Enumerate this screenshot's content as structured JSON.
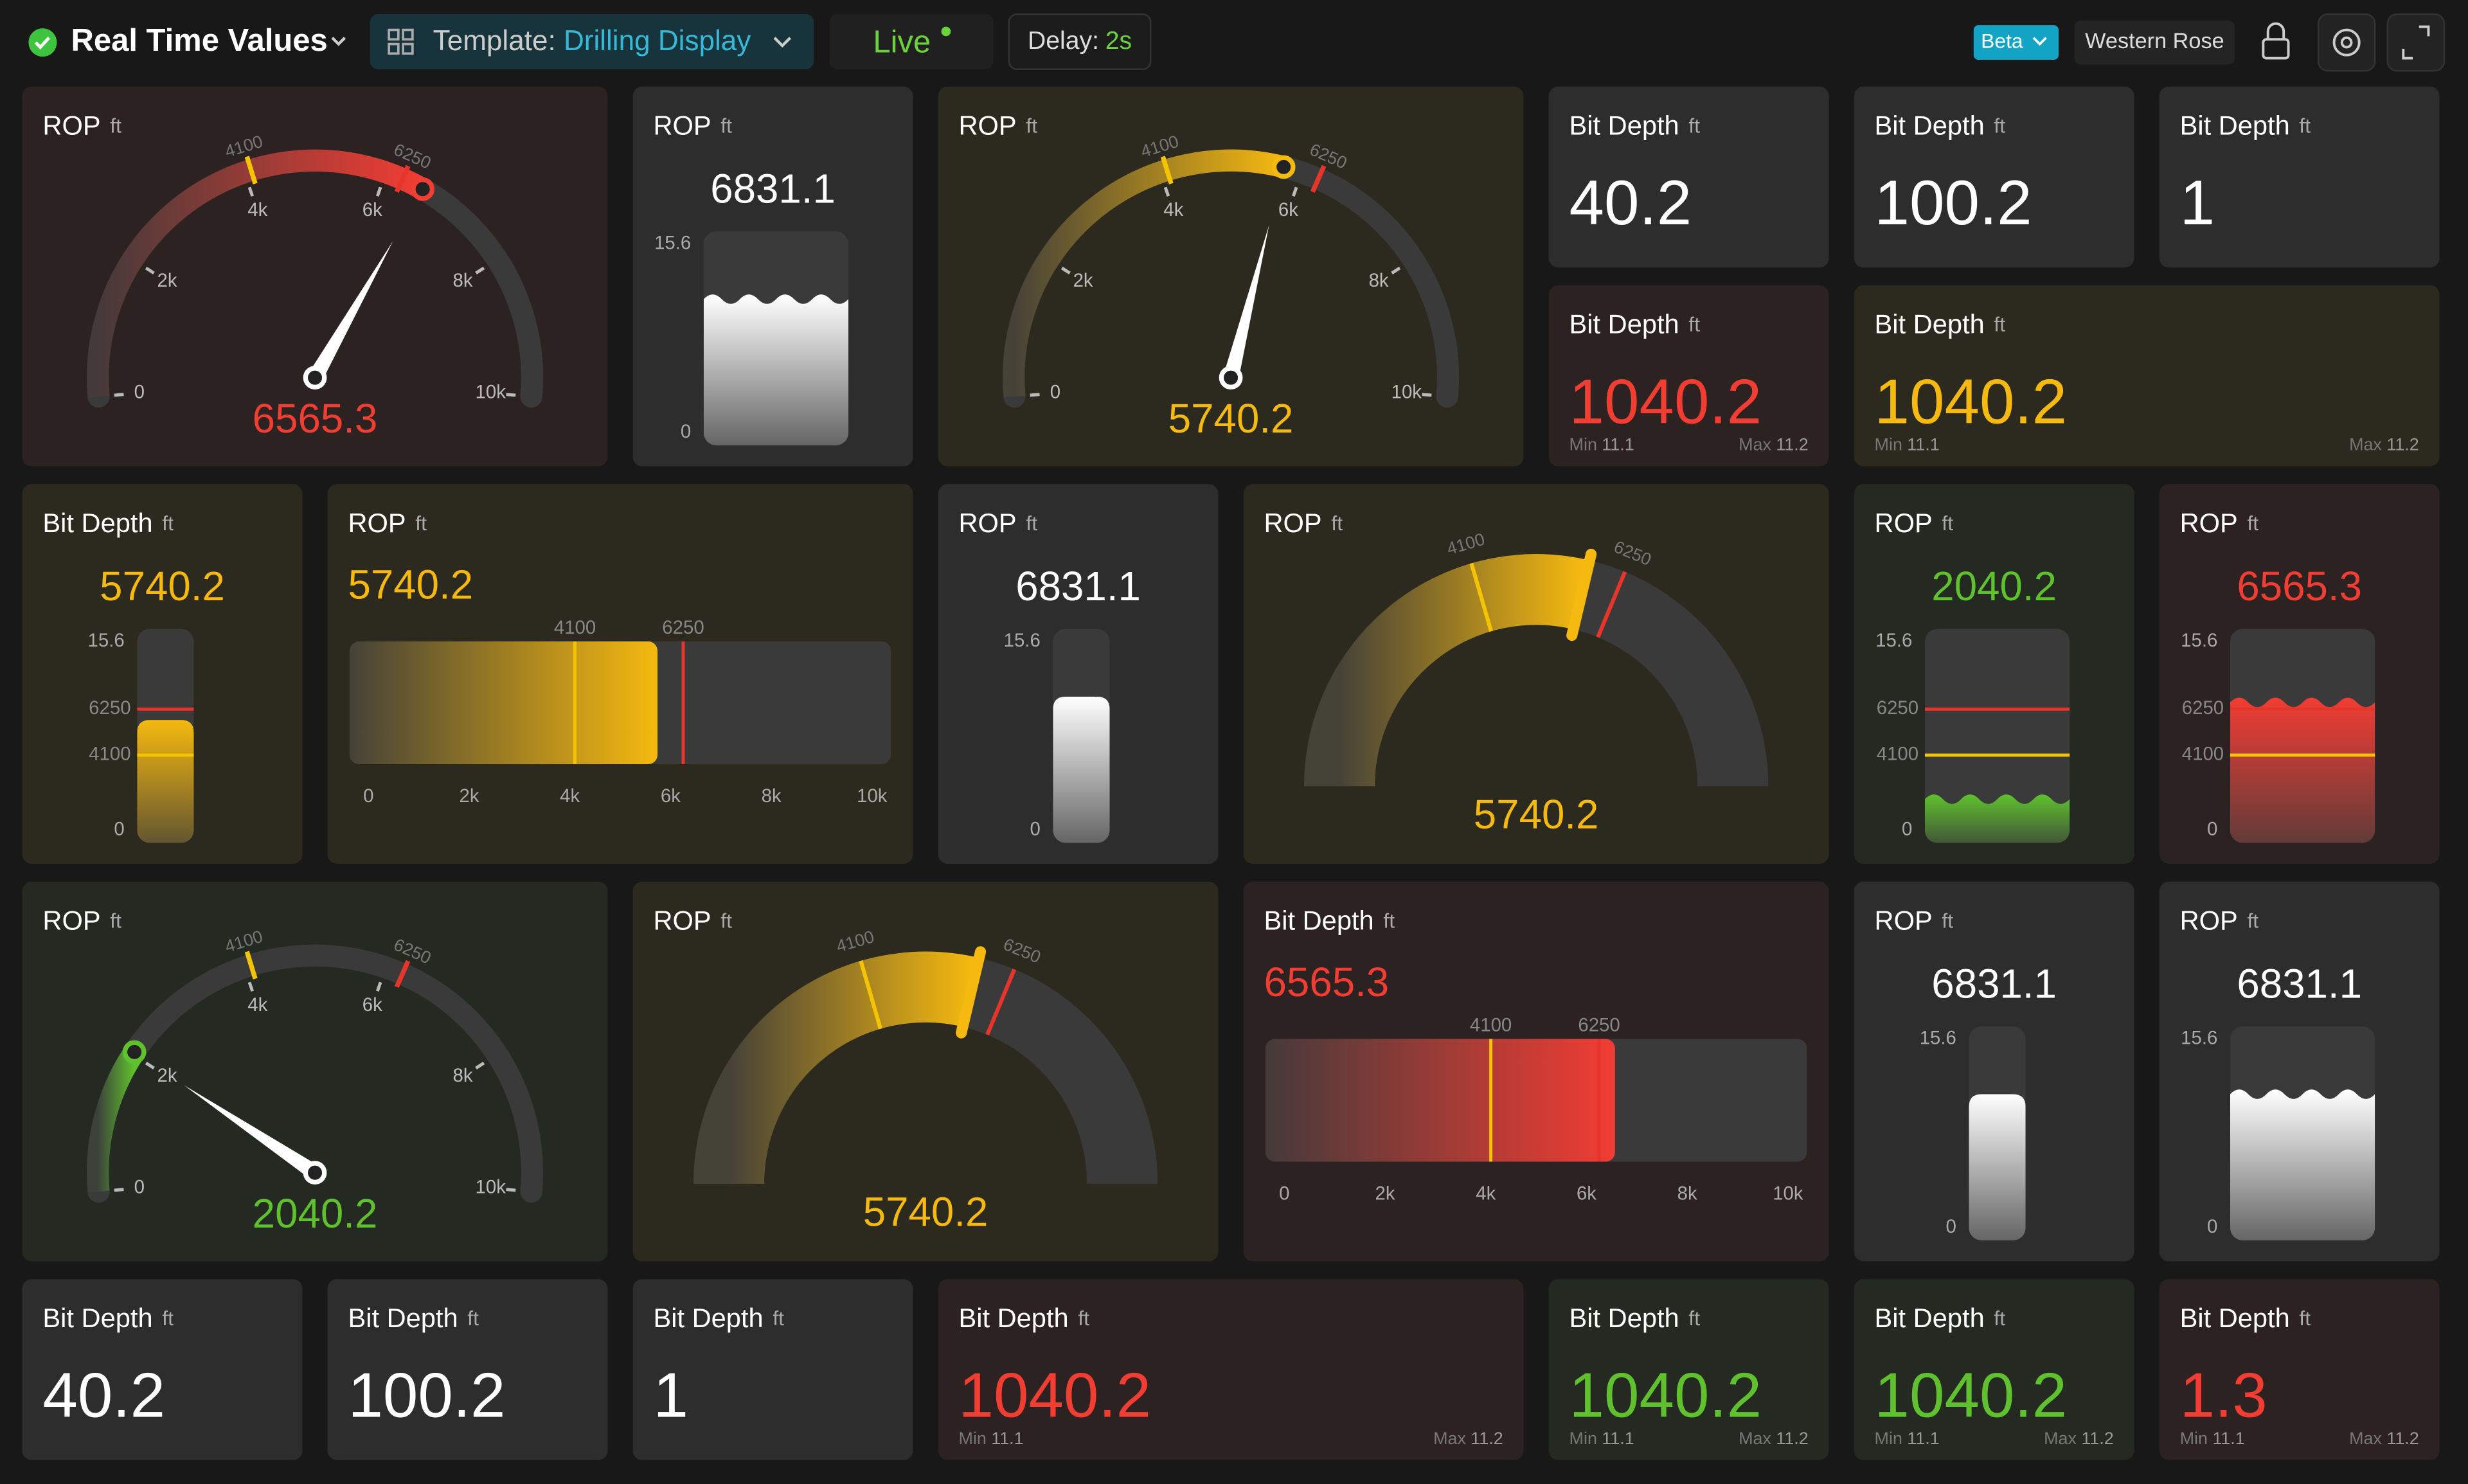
{
  "header": {
    "title": "Real Time Values",
    "template_label": "Template:",
    "template_name": "Drilling Display",
    "live": "Live",
    "delay_label": "Delay:",
    "delay": "2s",
    "beta": "Beta",
    "user": "Western Rose"
  },
  "scale": {
    "range": [
      0,
      10000
    ],
    "ticks": [
      0,
      {
        "value": 2000,
        "label": "2k"
      },
      {
        "value": 4000,
        "label": "4k"
      },
      {
        "value": 6000,
        "label": "6k"
      },
      {
        "value": 8000,
        "label": "8k"
      },
      {
        "value": 10000,
        "label": "10k"
      }
    ]
  },
  "markers": [
    {
      "value": 4100,
      "color": "#f5c400"
    },
    {
      "value": 6250,
      "color": "#e8352c"
    }
  ],
  "tank_labels": {
    "top": 15.6,
    "bottom": 0
  },
  "min_label": "Min",
  "max_label": "Max",
  "widgets": [
    {
      "type": "gauge",
      "label": "ROP",
      "unit": "ft",
      "value": 6565.3,
      "color": "#f23d33"
    },
    {
      "type": "tank",
      "label": "ROP",
      "unit": "ft",
      "value": 6831.1,
      "color": "#ffffff"
    },
    {
      "type": "gauge",
      "label": "ROP",
      "unit": "ft",
      "value": 5740.2,
      "color": "#f5b90f"
    },
    {
      "type": "tile",
      "label": "Bit Depth",
      "unit": "ft",
      "value": 40.2,
      "color": "#ffffff"
    },
    {
      "type": "tile",
      "label": "Bit Depth",
      "unit": "ft",
      "value": 100.2,
      "color": "#ffffff"
    },
    {
      "type": "tile",
      "label": "Bit Depth",
      "unit": "ft",
      "value": 1,
      "color": "#ffffff"
    },
    {
      "type": "tile",
      "label": "Bit Depth",
      "unit": "ft",
      "value": 1040.2,
      "color": "#f23d33",
      "min": 11.1,
      "max": 11.2
    },
    {
      "type": "tile",
      "label": "Bit Depth",
      "unit": "ft",
      "value": 1040.2,
      "color": "#f5b90f",
      "min": 11.1,
      "max": 11.2
    },
    {
      "type": "tank",
      "label": "Bit Depth",
      "unit": "ft",
      "value": 5740.2,
      "color": "#f5b90f",
      "show_markers": true
    },
    {
      "type": "hbar",
      "label": "ROP",
      "unit": "ft",
      "value": 5740.2,
      "color": "#f5b90f"
    },
    {
      "type": "tank",
      "label": "ROP",
      "unit": "ft",
      "value": 6831.1,
      "color": "#ffffff"
    },
    {
      "type": "arc",
      "label": "ROP",
      "unit": "ft",
      "value": 5740.2,
      "color": "#f5b90f"
    },
    {
      "type": "tank",
      "label": "ROP",
      "unit": "ft",
      "value": 2040.2,
      "color": "#5fc12e",
      "show_markers": true
    },
    {
      "type": "tank",
      "label": "ROP",
      "unit": "ft",
      "value": 6565.3,
      "color": "#f23d33",
      "show_markers": true
    },
    {
      "type": "gauge",
      "label": "ROP",
      "unit": "ft",
      "value": 2040.2,
      "color": "#5fc12e"
    },
    {
      "type": "arc",
      "label": "ROP",
      "unit": "ft",
      "value": 5740.2,
      "color": "#f5b90f"
    },
    {
      "type": "hbar",
      "label": "Bit Depth",
      "unit": "ft",
      "value": 6565.3,
      "color": "#f23d33"
    },
    {
      "type": "tank",
      "label": "ROP",
      "unit": "ft",
      "value": 6831.1,
      "color": "#ffffff"
    },
    {
      "type": "tank",
      "label": "ROP",
      "unit": "ft",
      "value": 6831.1,
      "color": "#ffffff"
    },
    {
      "type": "tile",
      "label": "Bit Depth",
      "unit": "ft",
      "value": 40.2,
      "color": "#ffffff"
    },
    {
      "type": "tile",
      "label": "Bit Depth",
      "unit": "ft",
      "value": 100.2,
      "color": "#ffffff"
    },
    {
      "type": "tile",
      "label": "Bit Depth",
      "unit": "ft",
      "value": 1,
      "color": "#ffffff"
    },
    {
      "type": "tile",
      "label": "Bit Depth",
      "unit": "ft",
      "value": 1040.2,
      "color": "#f23d33",
      "min": 11.1,
      "max": 11.2
    },
    {
      "type": "tile",
      "label": "Bit Depth",
      "unit": "ft",
      "value": 1040.2,
      "color": "#5fc12e",
      "min": 11.1,
      "max": 11.2
    },
    {
      "type": "tile",
      "label": "Bit Depth",
      "unit": "ft",
      "value": 1040.2,
      "color": "#5fc12e",
      "min": 11.1,
      "max": 11.2
    },
    {
      "type": "tile",
      "label": "Bit Depth",
      "unit": "ft",
      "value": 1.3,
      "color": "#f23d33",
      "min": 11.1,
      "max": 11.2
    }
  ]
}
